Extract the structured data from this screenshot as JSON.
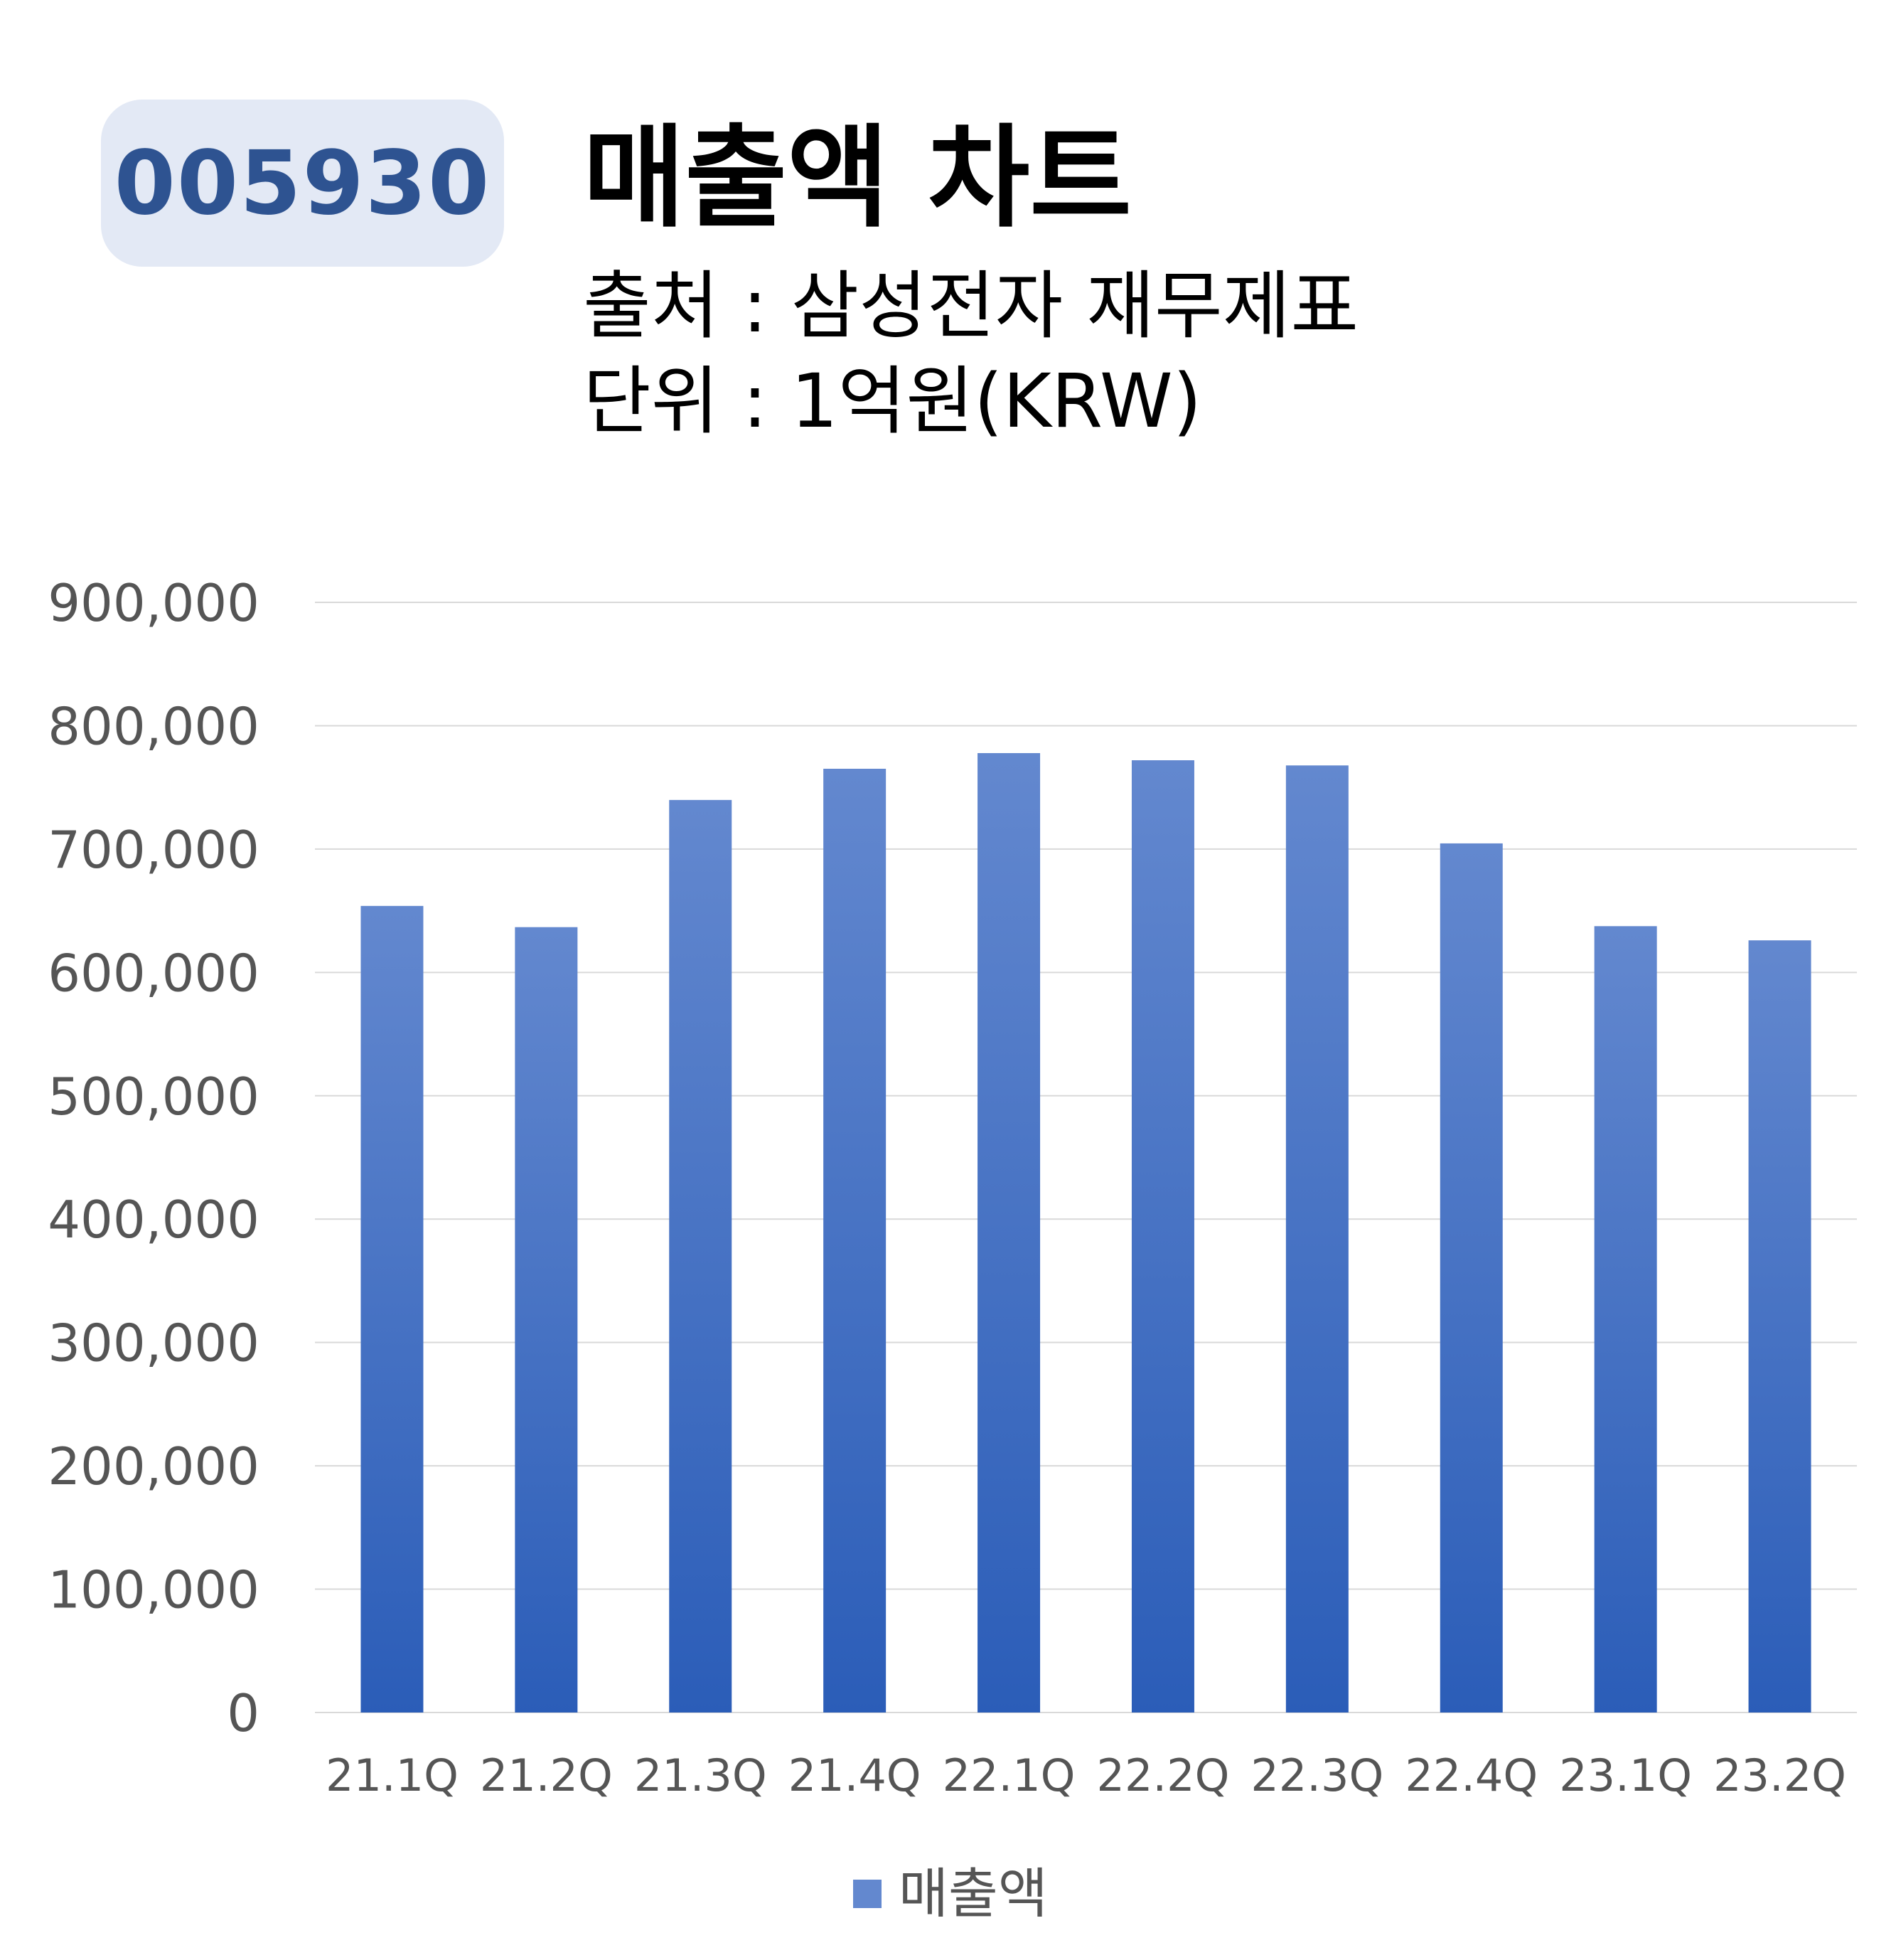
{
  "badge": {
    "ticker": "005930"
  },
  "header": {
    "title": "매출액 차트",
    "source": "출처 : 삼성전자 재무제표",
    "unit": "단위 : 1억원(KRW)"
  },
  "chart_data": {
    "type": "bar",
    "categories": [
      "21.1Q",
      "21.2Q",
      "21.3Q",
      "21.4Q",
      "22.1Q",
      "22.2Q",
      "22.3Q",
      "22.4Q",
      "23.1Q",
      "23.2Q"
    ],
    "series": [
      {
        "name": "매출액",
        "values": [
          653900,
          636700,
          739800,
          765100,
          777800,
          772000,
          767800,
          704600,
          637500,
          626000
        ]
      }
    ],
    "ylim": [
      0,
      900000
    ],
    "yticks": [
      "0",
      "100,000",
      "200,000",
      "300,000",
      "400,000",
      "500,000",
      "600,000",
      "700,000",
      "800,000",
      "900,000"
    ],
    "grid": true,
    "legend": "bottom-center",
    "colors": {
      "bar_top": "#6388cf",
      "bar_bottom": "#2b5db8",
      "grid": "#d9d9d9",
      "tick_label": "#555555"
    }
  }
}
